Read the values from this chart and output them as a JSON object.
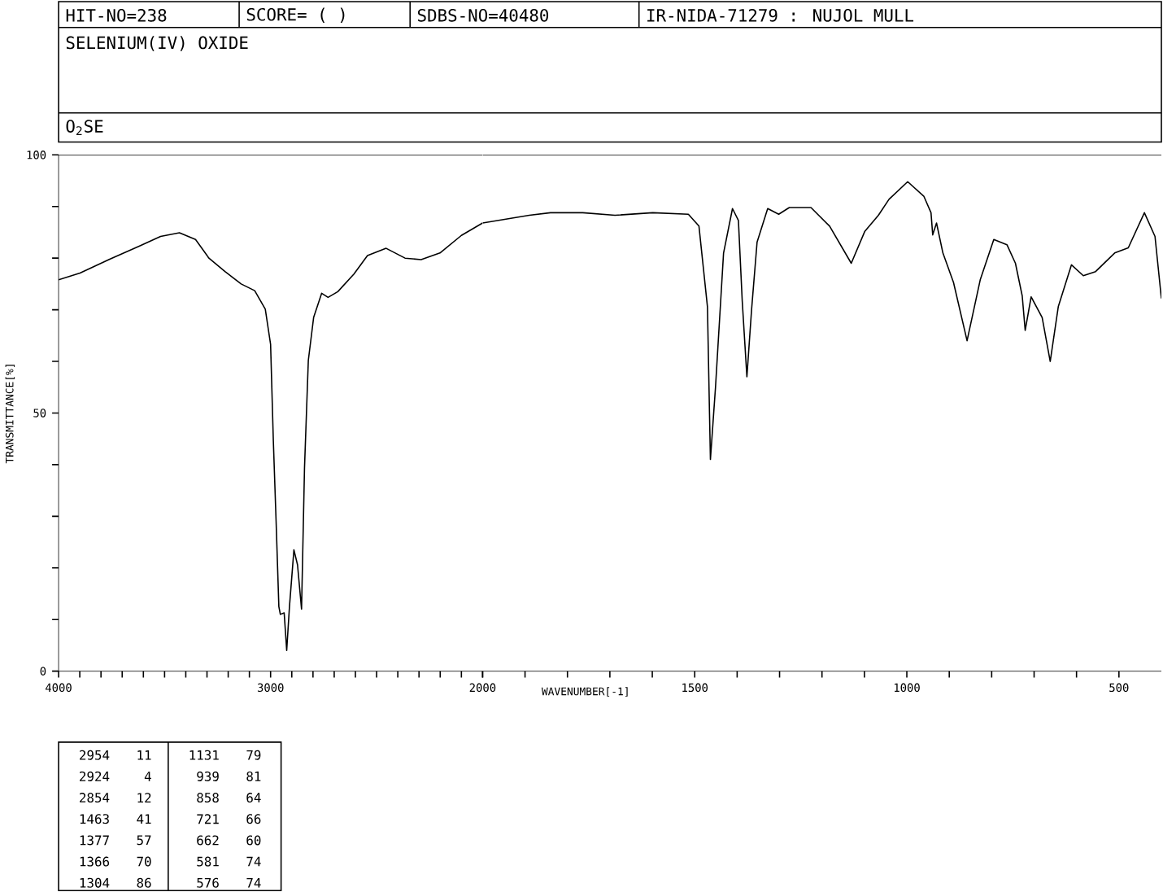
{
  "chart_data": [
    {
      "type": "line",
      "title": "SELENIUM(IV) OXIDE",
      "subtitle": "O$_{2}$SE",
      "xlabel": "WAVENUMBER[-1]",
      "ylabel": "TRANSMITTANCE[%]",
      "annotations": [
        "HIT-NO=238",
        "SCORE= (  )",
        "SDBS-NO=40480",
        "IR-NIDA-71279 : NUJOL MULL",
        "2954",
        "11",
        "1131",
        "79",
        "2924",
        "4",
        "939",
        "81",
        "2854",
        "12",
        "858",
        "64",
        "1463",
        "41",
        "721",
        "66",
        "1377",
        "57",
        "662",
        "60",
        "1366",
        "70",
        "581",
        "74",
        "1304",
        "86",
        "576",
        "74"
      ],
      "color": "#000000",
      "line_style": "solid",
      "marker": "none",
      "grid": false,
      "x": [
        4000,
        3899,
        3759,
        3620,
        3519,
        3430,
        3354,
        3291,
        3215,
        3139,
        3075,
        3025,
        3000,
        2987,
        2974,
        2961,
        2954,
        2936,
        2924,
        2911,
        2890,
        2873,
        2854,
        2840,
        2822,
        2797,
        2759,
        2729,
        2683,
        2607,
        2543,
        2455,
        2366,
        2290,
        2201,
        2100,
        2000
      ],
      "values": [
        75.8,
        77.1,
        79.8,
        82.3,
        84.2,
        84.9,
        83.6,
        80,
        77.4,
        75,
        73.7,
        70.1,
        63.3,
        44.6,
        29,
        12.5,
        11,
        11.3,
        4,
        12.5,
        23.5,
        20.6,
        12,
        39.4,
        60.2,
        68.5,
        73.2,
        72.4,
        73.5,
        76.9,
        80.5,
        81.9,
        80,
        79.7,
        81,
        84.4,
        86.8
      ],
      "xlim": [
        4000,
        2000
      ],
      "ylim": [
        0,
        100
      ],
      "xticks": [
        4000,
        {
          "value": 3900,
          "label": null
        },
        {
          "value": 3800,
          "label": null
        },
        {
          "value": 3700,
          "label": null
        },
        {
          "value": 3600,
          "label": null
        },
        {
          "value": 3500,
          "label": null
        },
        {
          "value": 3400,
          "label": null
        },
        {
          "value": 3300,
          "label": null
        },
        {
          "value": 3200,
          "label": null
        },
        {
          "value": 3100,
          "label": null
        },
        3000,
        {
          "value": 2900,
          "label": null
        },
        {
          "value": 2800,
          "label": null
        },
        {
          "value": 2700,
          "label": null
        },
        {
          "value": 2600,
          "label": null
        },
        {
          "value": 2500,
          "label": null
        },
        {
          "value": 2400,
          "label": null
        },
        {
          "value": 2300,
          "label": null
        },
        {
          "value": 2200,
          "label": null
        },
        {
          "value": 2100,
          "label": null
        },
        {
          "value": 2000,
          "label": null
        }
      ],
      "yticks": [
        0,
        {
          "value": 10,
          "label": null
        },
        {
          "value": 20,
          "label": null
        },
        {
          "value": 30,
          "label": null
        },
        {
          "value": 40,
          "label": null
        },
        50,
        {
          "value": 60,
          "label": null
        },
        {
          "value": 70,
          "label": null
        },
        {
          "value": 80,
          "label": null
        },
        {
          "value": 90,
          "label": null
        },
        100
      ]
    },
    {
      "type": "line",
      "color": "#000000",
      "line_style": "solid",
      "marker": "none",
      "grid": false,
      "tick_labels": "x",
      "x": [
        2000,
        1890,
        1840,
        1764,
        1688,
        1599,
        1515,
        1490,
        1470,
        1463,
        1451,
        1432,
        1411,
        1397,
        1388,
        1377,
        1366,
        1353,
        1328,
        1302,
        1277,
        1226,
        1182,
        1131,
        1099,
        1067,
        1042,
        998,
        960,
        943,
        939,
        930,
        915,
        890,
        858,
        827,
        795,
        764,
        744,
        728,
        721,
        707,
        681,
        662,
        643,
        612,
        584,
        555,
        510,
        478,
        440,
        415,
        400
      ],
      "values": [
        86.8,
        88.3,
        88.8,
        88.8,
        88.3,
        88.8,
        88.5,
        86.2,
        70.6,
        41,
        55,
        81,
        89.6,
        87.3,
        71.7,
        57,
        70,
        83.1,
        89.6,
        88.5,
        89.8,
        89.8,
        86.2,
        79,
        85.2,
        88.3,
        91.4,
        94.8,
        92,
        88.8,
        84.5,
        86.8,
        81,
        75.3,
        64,
        75.8,
        83.6,
        82.6,
        79,
        72.7,
        66,
        72.5,
        68.5,
        60,
        70.6,
        78.7,
        76.6,
        77.4,
        81,
        82,
        88.8,
        84.2,
        72.2
      ],
      "xlim": [
        2000,
        400
      ],
      "ylim": [
        0,
        100
      ],
      "xticks": [
        2000,
        {
          "value": 1900,
          "label": null
        },
        {
          "value": 1800,
          "label": null
        },
        {
          "value": 1700,
          "label": null
        },
        {
          "value": 1600,
          "label": null
        },
        1500,
        {
          "value": 1400,
          "label": null
        },
        {
          "value": 1300,
          "label": null
        },
        {
          "value": 1200,
          "label": null
        },
        {
          "value": 1100,
          "label": null
        },
        1000,
        {
          "value": 900,
          "label": null
        },
        {
          "value": 800,
          "label": null
        },
        {
          "value": 700,
          "label": null
        },
        {
          "value": 600,
          "label": null
        },
        500
      ]
    }
  ]
}
